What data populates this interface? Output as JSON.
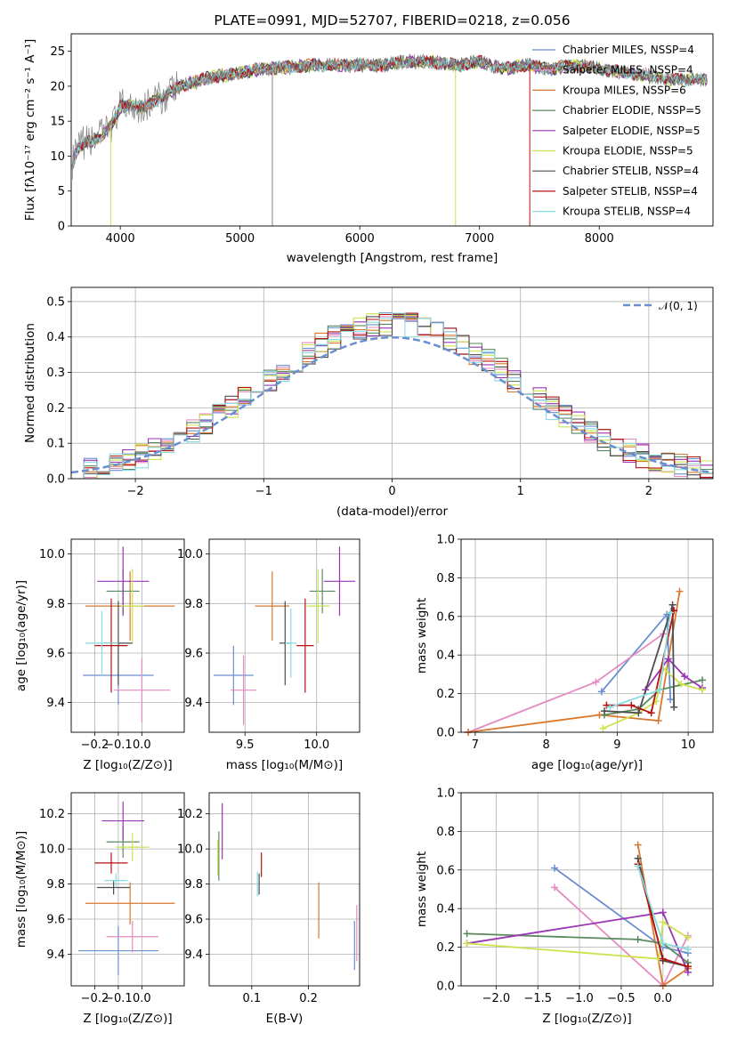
{
  "chart_data": [
    {
      "type": "line",
      "title": "PLATE=0991, MJD=52707, FIBERID=0218, z=0.056",
      "xlabel": "wavelength [Angstrom, rest frame]",
      "ylabel": "Flux [fλ10⁻¹⁷ erg cm⁻² s⁻¹ A⁻¹]",
      "xlim": [
        3590,
        8950
      ],
      "ylim": [
        0,
        27.5
      ],
      "xticks": [
        "4000",
        "5000",
        "6000",
        "7000",
        "8000"
      ],
      "yticks": [
        "0",
        "5",
        "10",
        "15",
        "20",
        "25"
      ],
      "grid": false,
      "legend_position": "right",
      "series": [
        {
          "name": "Chabrier MILES, N_SSP=4",
          "color": "#6a8fd1"
        },
        {
          "name": "Salpeter MILES, N_SSP=4",
          "color": "#e58bc1"
        },
        {
          "name": "Kroupa MILES, N_SSP=6",
          "color": "#d9782e"
        },
        {
          "name": "Chabrier ELODIE, N_SSP=5",
          "color": "#5a8a5f"
        },
        {
          "name": "Salpeter ELODIE, N_SSP=5",
          "color": "#9a35b5"
        },
        {
          "name": "Kroupa ELODIE, N_SSP=5",
          "color": "#cde24f"
        },
        {
          "name": "Chabrier STELIB, N_SSP=4",
          "color": "#4d4d4d"
        },
        {
          "name": "Salpeter STELIB, N_SSP=4",
          "color": "#b5120f"
        },
        {
          "name": "Kroupa STELIB, N_SSP=4",
          "color": "#88dbe0"
        }
      ],
      "data_color": "#808080",
      "continuum": {
        "x": [
          3600,
          3650,
          3700,
          3750,
          3800,
          3850,
          3900,
          3950,
          4000,
          4100,
          4200,
          4300,
          4400,
          4500,
          4600,
          4700,
          4800,
          4900,
          5000,
          5200,
          5400,
          5600,
          5800,
          6000,
          6200,
          6400,
          6600,
          6800,
          7000,
          7200,
          7400,
          7600,
          7800,
          8000,
          8200,
          8400,
          8600,
          8800
        ],
        "y": [
          9,
          11,
          12,
          12,
          12.5,
          13,
          14,
          15,
          17,
          17.5,
          17,
          18,
          19,
          20,
          20.5,
          21,
          21.5,
          21.5,
          22,
          22.5,
          22.7,
          23,
          23,
          23,
          23,
          23.5,
          23.5,
          23,
          23.5,
          22.5,
          23,
          22.5,
          23,
          22.5,
          22,
          21.5,
          21,
          21
        ]
      }
    },
    {
      "type": "histogram",
      "xlabel": "(data-model)/error",
      "ylabel": "Normed distribution",
      "xlim": [
        -2.5,
        2.5
      ],
      "ylim": [
        0,
        0.54
      ],
      "xticks": [
        "−2",
        "−1",
        "0",
        "1",
        "2"
      ],
      "yticks": [
        "0.0",
        "0.1",
        "0.2",
        "0.3",
        "0.4",
        "0.5"
      ],
      "grid": true,
      "legend": {
        "label": "𝒩(0, 1)",
        "color": "#6a8fd1",
        "position": "top-right"
      },
      "reference_curve": "normal(0,1) density"
    },
    {
      "type": "scatter",
      "xlabel": "Z [log₁₀(Z/Z⊙)]",
      "ylabel": "age  [log₁₀(age/yr)]",
      "xlim": [
        -0.3,
        0.18
      ],
      "ylim": [
        9.28,
        10.06
      ],
      "xticks": [
        "−0.2",
        "−0.1",
        "0.0"
      ],
      "yticks": [
        "9.4",
        "9.6",
        "9.8",
        "10.0"
      ],
      "grid": true,
      "points": [
        {
          "x": -0.1,
          "y": 9.51,
          "xerr": 0.15,
          "yerr": 0.12,
          "color": "#6a8fd1"
        },
        {
          "x": 0.0,
          "y": 9.45,
          "xerr": 0.12,
          "yerr": 0.13,
          "color": "#e58bc1"
        },
        {
          "x": -0.05,
          "y": 9.79,
          "xerr": 0.19,
          "yerr": 0.14,
          "color": "#d9782e"
        },
        {
          "x": -0.08,
          "y": 9.85,
          "xerr": 0.07,
          "yerr": 0.09,
          "color": "#5a8a5f"
        },
        {
          "x": -0.08,
          "y": 9.89,
          "xerr": 0.11,
          "yerr": 0.14,
          "color": "#9a35b5"
        },
        {
          "x": -0.04,
          "y": 9.79,
          "xerr": 0.05,
          "yerr": 0.15,
          "color": "#cde24f"
        },
        {
          "x": -0.1,
          "y": 9.64,
          "xerr": 0.06,
          "yerr": 0.17,
          "color": "#4d4d4d"
        },
        {
          "x": -0.13,
          "y": 9.63,
          "xerr": 0.07,
          "yerr": 0.19,
          "color": "#b5120f"
        },
        {
          "x": -0.17,
          "y": 9.64,
          "xerr": 0.07,
          "yerr": 0.13,
          "color": "#88dbe0"
        }
      ]
    },
    {
      "type": "scatter",
      "xlabel": "mass [log₁₀(M/M⊙)]",
      "ylabel": "",
      "xlim": [
        9.25,
        10.3
      ],
      "ylim": [
        9.28,
        10.06
      ],
      "xticks": [
        "9.5",
        "10.0"
      ],
      "yticks": [
        "9.4",
        "9.6",
        "9.8",
        "10.0"
      ],
      "grid": true,
      "points": [
        {
          "x": 9.42,
          "y": 9.51,
          "xerr": 0.14,
          "yerr": 0.12,
          "color": "#6a8fd1"
        },
        {
          "x": 9.49,
          "y": 9.45,
          "xerr": 0.09,
          "yerr": 0.14,
          "color": "#e58bc1"
        },
        {
          "x": 9.69,
          "y": 9.79,
          "xerr": 0.12,
          "yerr": 0.14,
          "color": "#d9782e"
        },
        {
          "x": 10.04,
          "y": 9.85,
          "xerr": 0.09,
          "yerr": 0.09,
          "color": "#5a8a5f"
        },
        {
          "x": 10.16,
          "y": 9.89,
          "xerr": 0.11,
          "yerr": 0.14,
          "color": "#9a35b5"
        },
        {
          "x": 10.01,
          "y": 9.79,
          "xerr": 0.08,
          "yerr": 0.15,
          "color": "#cde24f"
        },
        {
          "x": 9.78,
          "y": 9.64,
          "xerr": 0.04,
          "yerr": 0.17,
          "color": "#4d4d4d"
        },
        {
          "x": 9.92,
          "y": 9.63,
          "xerr": 0.06,
          "yerr": 0.19,
          "color": "#b5120f"
        },
        {
          "x": 9.82,
          "y": 9.64,
          "xerr": 0.04,
          "yerr": 0.14,
          "color": "#88dbe0"
        }
      ]
    },
    {
      "type": "line",
      "xlabel": "age  [log₁₀(age/yr)]",
      "ylabel": "mass weight",
      "xlim": [
        6.8,
        10.35
      ],
      "ylim": [
        0,
        1.0
      ],
      "xticks": [
        "7",
        "8",
        "9",
        "10"
      ],
      "yticks": [
        "0.0",
        "0.2",
        "0.4",
        "0.6",
        "0.8",
        "1.0"
      ],
      "grid": true,
      "series": [
        {
          "color": "#6a8fd1",
          "x": [
            8.78,
            9.7,
            9.75
          ],
          "y": [
            0.21,
            0.61,
            0.17
          ]
        },
        {
          "color": "#e58bc1",
          "x": [
            6.9,
            8.7,
            9.65
          ],
          "y": [
            0.0,
            0.26,
            0.51
          ]
        },
        {
          "color": "#d9782e",
          "x": [
            6.9,
            8.75,
            9.58,
            9.88
          ],
          "y": [
            0.0,
            0.09,
            0.06,
            0.73
          ]
        },
        {
          "color": "#5a8a5f",
          "x": [
            8.82,
            9.3,
            9.6,
            10.2
          ],
          "y": [
            0.09,
            0.12,
            0.22,
            0.27
          ]
        },
        {
          "color": "#9a35b5",
          "x": [
            9.4,
            9.72,
            9.95,
            10.2
          ],
          "y": [
            0.22,
            0.38,
            0.29,
            0.23
          ]
        },
        {
          "color": "#cde24f",
          "x": [
            8.8,
            9.3,
            9.55,
            9.65,
            9.9,
            10.2
          ],
          "y": [
            0.02,
            0.1,
            0.16,
            0.33,
            0.25,
            0.22
          ]
        },
        {
          "color": "#4d4d4d",
          "x": [
            8.82,
            9.3,
            9.78,
            9.8
          ],
          "y": [
            0.11,
            0.1,
            0.66,
            0.13
          ]
        },
        {
          "color": "#b5120f",
          "x": [
            8.85,
            9.2,
            9.48,
            9.8
          ],
          "y": [
            0.14,
            0.14,
            0.1,
            0.63
          ]
        },
        {
          "color": "#88dbe0",
          "x": [
            8.9,
            9.6,
            9.75
          ],
          "y": [
            0.13,
            0.22,
            0.62
          ]
        }
      ]
    },
    {
      "type": "scatter",
      "xlabel": "Z [log₁₀(Z/Z⊙)]",
      "ylabel": "mass [log₁₀(M/M⊙)]",
      "xlim": [
        -0.3,
        0.18
      ],
      "ylim": [
        9.22,
        10.32
      ],
      "xticks": [
        "−0.2",
        "−0.1",
        "0.0"
      ],
      "yticks": [
        "9.4",
        "9.6",
        "9.8",
        "10.0",
        "10.2"
      ],
      "grid": true,
      "points": [
        {
          "x": -0.1,
          "y": 9.42,
          "xerr": 0.17,
          "yerr": 0.14,
          "color": "#6a8fd1"
        },
        {
          "x": -0.04,
          "y": 9.5,
          "xerr": 0.11,
          "yerr": 0.09,
          "color": "#e58bc1"
        },
        {
          "x": -0.05,
          "y": 9.69,
          "xerr": 0.19,
          "yerr": 0.12,
          "color": "#d9782e"
        },
        {
          "x": -0.08,
          "y": 10.04,
          "xerr": 0.07,
          "yerr": 0.09,
          "color": "#5a8a5f"
        },
        {
          "x": -0.08,
          "y": 10.16,
          "xerr": 0.09,
          "yerr": 0.11,
          "color": "#9a35b5"
        },
        {
          "x": -0.04,
          "y": 10.01,
          "xerr": 0.07,
          "yerr": 0.08,
          "color": "#cde24f"
        },
        {
          "x": -0.12,
          "y": 9.78,
          "xerr": 0.07,
          "yerr": 0.04,
          "color": "#4d4d4d"
        },
        {
          "x": -0.13,
          "y": 9.92,
          "xerr": 0.07,
          "yerr": 0.06,
          "color": "#b5120f"
        },
        {
          "x": -0.11,
          "y": 9.82,
          "xerr": 0.05,
          "yerr": 0.04,
          "color": "#88dbe0"
        }
      ]
    },
    {
      "type": "scatter",
      "xlabel": "E(B-V)",
      "ylabel": "",
      "xlim": [
        0.025,
        0.29
      ],
      "ylim": [
        9.22,
        10.32
      ],
      "xticks": [
        "0.1",
        "0.2"
      ],
      "yticks": [
        "9.4",
        "9.6",
        "9.8",
        "10.0",
        "10.2"
      ],
      "grid": true,
      "points": [
        {
          "x": 0.281,
          "y": 9.45,
          "yerr": 0.14,
          "color": "#6a8fd1"
        },
        {
          "x": 0.285,
          "y": 9.52,
          "yerr": 0.16,
          "color": "#e58bc1"
        },
        {
          "x": 0.218,
          "y": 9.65,
          "yerr": 0.16,
          "color": "#d9782e"
        },
        {
          "x": 0.042,
          "y": 9.96,
          "yerr": 0.14,
          "color": "#5a8a5f"
        },
        {
          "x": 0.048,
          "y": 10.1,
          "yerr": 0.16,
          "color": "#9a35b5"
        },
        {
          "x": 0.04,
          "y": 9.95,
          "yerr": 0.1,
          "color": "#cde24f"
        },
        {
          "x": 0.113,
          "y": 9.8,
          "yerr": 0.06,
          "color": "#4d4d4d"
        },
        {
          "x": 0.117,
          "y": 9.91,
          "yerr": 0.07,
          "color": "#b5120f"
        },
        {
          "x": 0.11,
          "y": 9.8,
          "yerr": 0.07,
          "color": "#88dbe0"
        }
      ]
    },
    {
      "type": "line",
      "xlabel": "Z [log₁₀(Z/Z⊙)]",
      "ylabel": "mass weight",
      "xlim": [
        -2.42,
        0.6
      ],
      "ylim": [
        0,
        1.0
      ],
      "xticks": [
        "−2.0",
        "−1.5",
        "−1.0",
        "−0.5",
        "0.0"
      ],
      "yticks": [
        "0.0",
        "0.2",
        "0.4",
        "0.6",
        "0.8",
        "1.0"
      ],
      "grid": true,
      "series": [
        {
          "color": "#6a8fd1",
          "x": [
            -1.3,
            0.0,
            0.3
          ],
          "y": [
            0.61,
            0.2,
            0.17
          ]
        },
        {
          "color": "#e58bc1",
          "x": [
            -1.3,
            0.0,
            0.3
          ],
          "y": [
            0.51,
            0.0,
            0.26
          ]
        },
        {
          "color": "#d9782e",
          "x": [
            -0.3,
            0.0,
            0.3
          ],
          "y": [
            0.73,
            0.0,
            0.09
          ]
        },
        {
          "color": "#5a8a5f",
          "x": [
            -2.35,
            -0.3,
            0.0,
            0.3
          ],
          "y": [
            0.27,
            0.24,
            0.22,
            0.12
          ]
        },
        {
          "color": "#9a35b5",
          "x": [
            -2.35,
            0.0,
            0.3
          ],
          "y": [
            0.22,
            0.38,
            0.07
          ]
        },
        {
          "color": "#cde24f",
          "x": [
            -2.35,
            -0.05,
            0.0,
            0.3
          ],
          "y": [
            0.22,
            0.14,
            0.33,
            0.25
          ]
        },
        {
          "color": "#4d4d4d",
          "x": [
            -0.3,
            0.0,
            0.3
          ],
          "y": [
            0.66,
            0.13,
            0.1
          ]
        },
        {
          "color": "#b5120f",
          "x": [
            -0.3,
            0.0,
            0.3
          ],
          "y": [
            0.63,
            0.14,
            0.1
          ]
        },
        {
          "color": "#88dbe0",
          "x": [
            -0.3,
            0.0,
            0.3
          ],
          "y": [
            0.62,
            0.22,
            0.19
          ]
        }
      ]
    }
  ]
}
